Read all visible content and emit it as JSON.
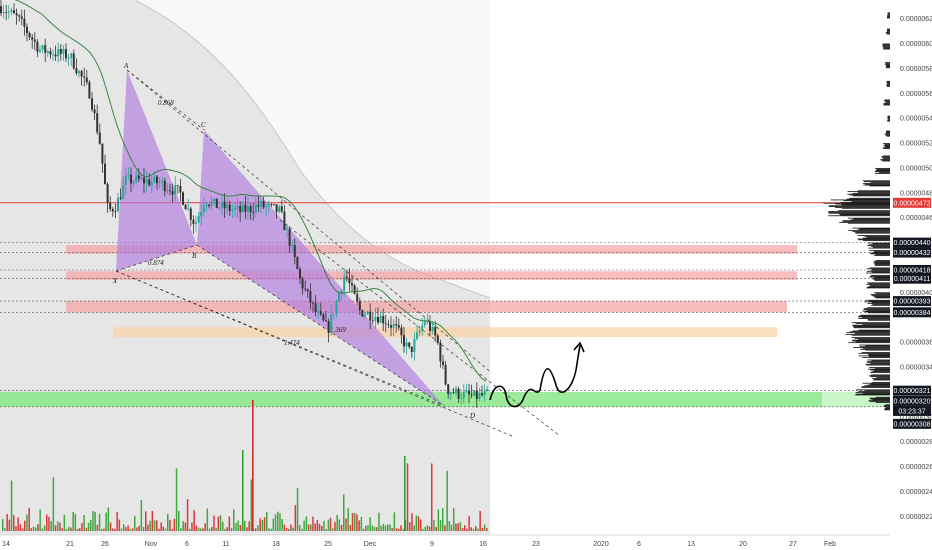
{
  "chart_data": {
    "type": "candlestick",
    "ylim": [
      2.05e-06,
      6.35e-06
    ],
    "y_ticks": [
      "0.00000620",
      "0.00000600",
      "0.00000580",
      "0.00000560",
      "0.00000540",
      "0.00000520",
      "0.00000500",
      "0.00000480",
      "0.00000460",
      "0.00000400",
      "0.00000360",
      "0.00000340",
      "0.00000300",
      "0.00000280",
      "0.00000260",
      "0.00000240",
      "0.00000220"
    ],
    "x_ticks": [
      "14",
      "21",
      "26",
      "Nov",
      "6",
      "11",
      "18",
      "25",
      "Dec",
      "9",
      "16",
      "23",
      "2020",
      "6",
      "13",
      "20",
      "27",
      "Feb"
    ],
    "price_labels": [
      {
        "value": "0.00000472",
        "style": "red"
      },
      {
        "value": "0.00000440",
        "style": "dark"
      },
      {
        "value": "0.00000432",
        "style": "dark"
      },
      {
        "value": "0.00000418",
        "style": "dark"
      },
      {
        "value": "0.00000411",
        "style": "dark"
      },
      {
        "value": "0.00000393",
        "style": "dark"
      },
      {
        "value": "0.00000384",
        "style": "dark"
      },
      {
        "value": "0.00000321",
        "style": "dark"
      },
      {
        "value": "0.00000320",
        "style": "dark"
      },
      {
        "value": "03:23:37",
        "style": "dark"
      },
      {
        "value": "0.00000308",
        "style": "dark"
      }
    ],
    "pattern_points": [
      "X",
      "A",
      "B",
      "C",
      "D"
    ],
    "pattern_ratios": [
      "0.868",
      "0.874",
      "1.369",
      "1.474"
    ],
    "horizontal_lines": [
      4.72e-06
    ],
    "zones": [
      {
        "from": 4.31e-06,
        "to": 4.38e-06,
        "color": "#f4a7a7"
      },
      {
        "from": 4.1e-06,
        "to": 4.17e-06,
        "color": "#f4a7a7"
      },
      {
        "from": 3.84e-06,
        "to": 3.93e-06,
        "color": "#f4a7a7"
      },
      {
        "from": 3.64e-06,
        "to": 3.72e-06,
        "color": "#f9d4a7"
      },
      {
        "from": 3.08e-06,
        "to": 3.2e-06,
        "color": "#8ae88a"
      }
    ],
    "colors": {
      "up": "#26a69a",
      "down": "#333333",
      "pattern": "#b07be0",
      "resistance": "#e53935",
      "support": "#66e066",
      "moving_average": "#2e7d32"
    }
  }
}
